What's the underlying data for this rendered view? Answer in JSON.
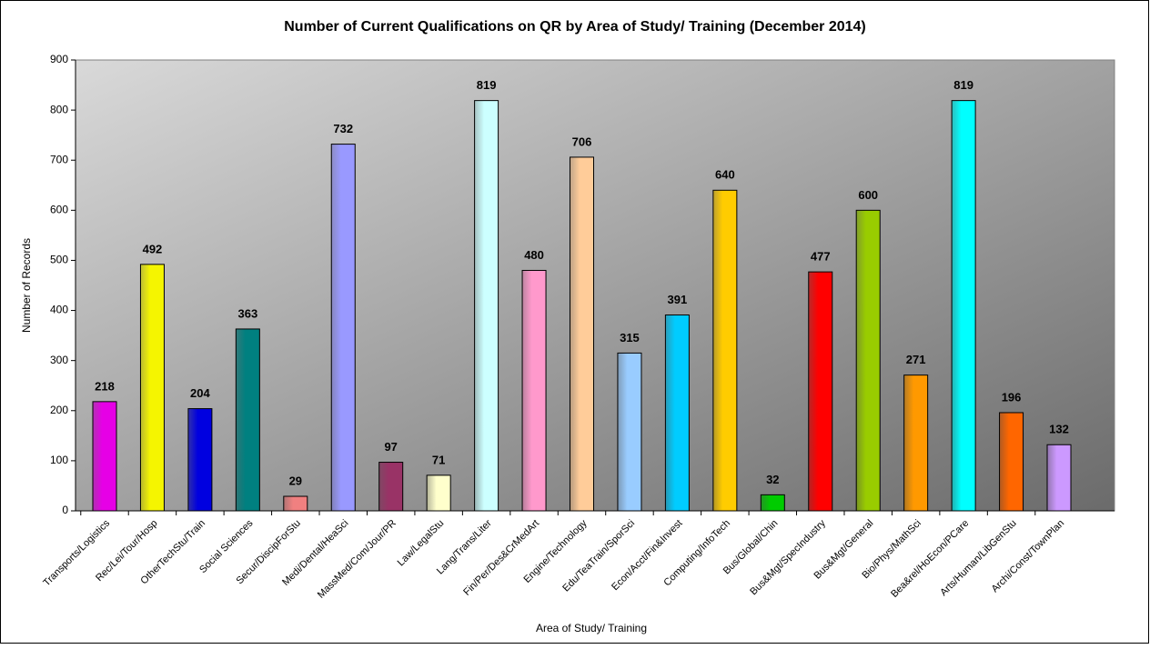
{
  "chart_data": {
    "type": "bar",
    "title": "Number of Current Qualifications on QR by Area of Study/ Training (December 2014)",
    "x_label": "Area of Study/ Training",
    "y_label": "Number of Records",
    "categories": [
      "Transports/Logistics",
      "Rec/Lei/Tour/Hosp",
      "OtherTechStu/Train",
      "Social Sciences",
      "Secur/DiscipForStu",
      "Medi/Dental/HeaSci",
      "MassMed/Com/Jour/PR",
      "Law/LegalStu",
      "Lang/Trans/Liter",
      "Fin/Per/Des&CrMedArt",
      "Engine/Technology",
      "Edu/TeaTrain/SporSci",
      "Econ/Acct/Fin&Invest",
      "Computing/InfoTech",
      "Bus/Global/Chin",
      "Bus&Mgt/SpecIndustry",
      "Bus&Mgt/General",
      "Bio/Phys/MathSci",
      "Bea&rel/HoEcon/PCare",
      "Arts/Human/LibGenStu",
      "Archi/Const/TownPlan"
    ],
    "values": [
      218,
      492,
      204,
      363,
      29,
      732,
      97,
      71,
      819,
      480,
      706,
      315,
      391,
      640,
      32,
      477,
      600,
      271,
      819,
      196,
      132
    ],
    "colors": [
      "#e600e6",
      "#f5f500",
      "#0000e0",
      "#008080",
      "#f08080",
      "#9999ff",
      "#993366",
      "#ffffcc",
      "#ccffff",
      "#ff99cc",
      "#ffcc99",
      "#99ccff",
      "#00ccff",
      "#ffcc00",
      "#00cc00",
      "#ff0000",
      "#99cc00",
      "#ff9900",
      "#00ffff",
      "#ff6600",
      "#cc99ff"
    ],
    "ylim": [
      0,
      900
    ],
    "yticks": [
      0,
      100,
      200,
      300,
      400,
      500,
      600,
      700,
      800,
      900
    ]
  }
}
